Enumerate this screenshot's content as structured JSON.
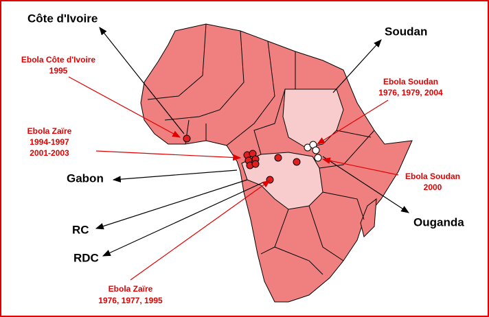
{
  "countries": [
    "Côte d'Ivoire",
    "Soudan",
    "Gabon",
    "RC",
    "RDC",
    "Ouganda"
  ],
  "outbreaks": [
    {
      "lines": [
        "Ebola Côte d'Ivoire",
        "1995"
      ]
    },
    {
      "lines": [
        "Ebola Zaïre",
        "1994-1997",
        "2001-2003"
      ]
    },
    {
      "lines": [
        "Ebola Soudan",
        "1976, 1979, 2004"
      ]
    },
    {
      "lines": [
        "Ebola Soudan",
        "2000"
      ]
    },
    {
      "lines": [
        "Ebola Zaïre",
        "1976, 1977, 1995"
      ]
    }
  ]
}
